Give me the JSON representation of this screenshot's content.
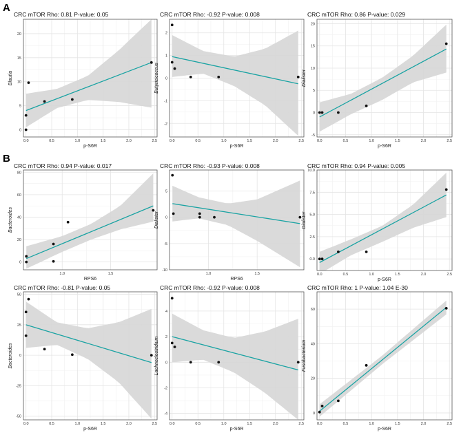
{
  "figure": {
    "panel_labels": [
      "A",
      "B"
    ],
    "colors": {
      "line": "#1aa3a3",
      "band": "#d6d6d6",
      "grid_major": "#e4e4e4",
      "grid_minor": "#f1f1f1",
      "point": "#111111",
      "frame": "#555555"
    }
  },
  "chart_data": [
    {
      "type": "scatter",
      "panel": "A",
      "title": "CRC    mTOR  Rho: 0.81  P-value: 0.05",
      "xlabel": "p-S6R",
      "ylabel": "Blautia",
      "xlim": [
        -0.05,
        2.55
      ],
      "ylim": [
        -1.5,
        23
      ],
      "xticks": [
        0.0,
        0.5,
        1.0,
        1.5,
        2.0,
        2.5
      ],
      "xtick_labels": [
        "0.0",
        "0.5",
        "1.0",
        "1.5",
        "2.0",
        "2.5"
      ],
      "yticks": [
        0,
        5,
        10,
        15,
        20
      ],
      "ytick_labels": [
        "0",
        "5",
        "10",
        "15",
        "20"
      ],
      "x": [
        0.0,
        0.0,
        0.05,
        0.36,
        0.9,
        2.44
      ],
      "y": [
        0.0,
        3.0,
        9.8,
        5.9,
        6.3,
        14.0
      ],
      "fit": [
        [
          0.0,
          4.0
        ],
        [
          2.44,
          14.0
        ]
      ],
      "band_lower": [
        [
          0.0,
          0.5
        ],
        [
          0.6,
          4.5
        ],
        [
          1.2,
          6.2
        ],
        [
          1.8,
          5.8
        ],
        [
          2.44,
          4.6
        ]
      ],
      "band_upper": [
        [
          0.0,
          7.5
        ],
        [
          0.6,
          8.5
        ],
        [
          1.2,
          11.2
        ],
        [
          1.8,
          16.5
        ],
        [
          2.44,
          23.0
        ]
      ]
    },
    {
      "type": "scatter",
      "panel": "A",
      "title": "CRC    mTOR  Rho: -0.92  P-value: 0.008",
      "xlabel": "p-S6R",
      "ylabel": "Butyricicoccus",
      "xlim": [
        -0.05,
        2.55
      ],
      "ylim": [
        -2.6,
        2.6
      ],
      "xticks": [
        0.0,
        0.5,
        1.0,
        1.5,
        2.0,
        2.5
      ],
      "xtick_labels": [
        "0.0",
        "0.5",
        "1.0",
        "1.5",
        "2.0",
        "2.5"
      ],
      "yticks": [
        -2,
        -1,
        0,
        1,
        2
      ],
      "ytick_labels": [
        "-2",
        "-1",
        "0",
        "1",
        "2"
      ],
      "x": [
        0.0,
        0.0,
        0.05,
        0.36,
        0.9,
        2.44
      ],
      "y": [
        2.35,
        0.7,
        0.42,
        0.05,
        0.05,
        0.05
      ],
      "fit": [
        [
          0.0,
          0.95
        ],
        [
          2.44,
          -0.25
        ]
      ],
      "band_lower": [
        [
          0.0,
          0.05
        ],
        [
          0.6,
          0.2
        ],
        [
          1.2,
          -0.35
        ],
        [
          1.8,
          -1.2
        ],
        [
          2.44,
          -2.55
        ]
      ],
      "band_upper": [
        [
          0.0,
          1.9
        ],
        [
          0.6,
          1.2
        ],
        [
          1.2,
          0.95
        ],
        [
          1.8,
          1.3
        ],
        [
          2.44,
          2.1
        ]
      ]
    },
    {
      "type": "scatter",
      "panel": "A",
      "title": "CRC    mTOR  Rho: 0.86  P-value: 0.029",
      "xlabel": "p-S6R",
      "ylabel": "Dialister",
      "xlim": [
        -0.05,
        2.55
      ],
      "ylim": [
        -5.5,
        21
      ],
      "xticks": [
        0.0,
        0.5,
        1.0,
        1.5,
        2.0,
        2.5
      ],
      "xtick_labels": [
        "0.0",
        "0.5",
        "1.0",
        "1.5",
        "2.0",
        "2.5"
      ],
      "yticks": [
        -5,
        0,
        5,
        10,
        15,
        20
      ],
      "ytick_labels": [
        "-5",
        "0",
        "5",
        "10",
        "15",
        "20"
      ],
      "x": [
        0.0,
        0.05,
        0.36,
        0.9,
        2.44
      ],
      "y": [
        0.0,
        0.0,
        0.0,
        1.5,
        15.5
      ],
      "fit": [
        [
          0.0,
          -1.0
        ],
        [
          2.44,
          14.3
        ]
      ],
      "band_lower": [
        [
          0.0,
          -4.3
        ],
        [
          0.6,
          -0.4
        ],
        [
          1.2,
          2.8
        ],
        [
          1.8,
          6.8
        ],
        [
          2.44,
          9.0
        ]
      ],
      "band_upper": [
        [
          0.0,
          2.3
        ],
        [
          0.6,
          4.2
        ],
        [
          1.2,
          7.8
        ],
        [
          1.8,
          12.8
        ],
        [
          2.44,
          19.8
        ]
      ]
    },
    {
      "type": "scatter",
      "panel": "B",
      "title": "CRC    mTOR  Rho: 0.94  P-value: 0.017",
      "xlabel": "RPS6",
      "ylabel": "Bacteroides",
      "xlim": [
        0.6,
        1.98
      ],
      "ylim": [
        -7,
        82
      ],
      "xticks": [
        1.0,
        1.5
      ],
      "xtick_labels": [
        "1.0",
        "1.5"
      ],
      "yticks": [
        0,
        20,
        40,
        60,
        80
      ],
      "ytick_labels": [
        "0",
        "20",
        "40",
        "60",
        "80"
      ],
      "x": [
        0.63,
        0.63,
        0.91,
        0.91,
        1.06,
        1.94
      ],
      "y": [
        0.0,
        5.0,
        0.5,
        16.0,
        35.5,
        46.0
      ],
      "fit": [
        [
          0.63,
          3.0
        ],
        [
          1.94,
          50.0
        ]
      ],
      "band_lower": [
        [
          0.63,
          -6.0
        ],
        [
          1.0,
          9.0
        ],
        [
          1.3,
          20.0
        ],
        [
          1.6,
          29.0
        ],
        [
          1.94,
          36.0
        ]
      ],
      "band_upper": [
        [
          0.63,
          14.0
        ],
        [
          1.0,
          23.0
        ],
        [
          1.3,
          34.0
        ],
        [
          1.6,
          50.0
        ],
        [
          1.94,
          79.0
        ]
      ]
    },
    {
      "type": "scatter",
      "panel": "B",
      "title": "CRC    mTOR  Rho: -0.93  P-value: 0.008",
      "xlabel": "RPS6",
      "ylabel": "Dialister",
      "xlim": [
        0.6,
        1.98
      ],
      "ylim": [
        -10,
        9
      ],
      "xticks": [
        1.0,
        1.5
      ],
      "xtick_labels": [
        "1.0",
        "1.5"
      ],
      "yticks": [
        -10,
        -5,
        0,
        5
      ],
      "ytick_labels": [
        "-10",
        "-5",
        "0",
        "5"
      ],
      "x": [
        0.63,
        0.64,
        0.91,
        0.91,
        1.06,
        1.94
      ],
      "y": [
        8.0,
        0.7,
        0.7,
        0.0,
        0.0,
        0.0
      ],
      "fit": [
        [
          0.63,
          2.6
        ],
        [
          1.94,
          -1.2
        ]
      ],
      "band_lower": [
        [
          0.63,
          -0.8
        ],
        [
          0.9,
          -0.2
        ],
        [
          1.2,
          -1.5
        ],
        [
          1.5,
          -4.5
        ],
        [
          1.94,
          -9.5
        ]
      ],
      "band_upper": [
        [
          0.63,
          6.0
        ],
        [
          0.9,
          3.8
        ],
        [
          1.2,
          2.6
        ],
        [
          1.5,
          3.4
        ],
        [
          1.94,
          7.0
        ]
      ]
    },
    {
      "type": "scatter",
      "panel": "B",
      "title": "CRC    mTOR  Rho: 0.94  P-value: 0.005",
      "xlabel": "p-S6R",
      "ylabel": "Dialister",
      "xlim": [
        -0.05,
        2.55
      ],
      "ylim": [
        -1.3,
        10
      ],
      "xticks": [
        0.0,
        0.5,
        1.0,
        1.5,
        2.0,
        2.5
      ],
      "xtick_labels": [
        "0.0",
        "0.5",
        "1.0",
        "1.5",
        "2.0",
        "2.5"
      ],
      "yticks": [
        0.0,
        2.5,
        5.0,
        7.5,
        10.0
      ],
      "ytick_labels": [
        "0.0",
        "2.5",
        "5.0",
        "7.5",
        "10.0"
      ],
      "x": [
        0.0,
        0.05,
        0.36,
        0.9,
        2.44
      ],
      "y": [
        0.0,
        0.0,
        0.8,
        0.8,
        7.8
      ],
      "fit": [
        [
          0.0,
          -0.4
        ],
        [
          2.44,
          7.2
        ]
      ],
      "band_lower": [
        [
          0.0,
          -1.7
        ],
        [
          0.6,
          0.4
        ],
        [
          1.2,
          1.9
        ],
        [
          1.8,
          3.5
        ],
        [
          2.44,
          4.7
        ]
      ],
      "band_upper": [
        [
          0.0,
          0.8
        ],
        [
          0.6,
          2.2
        ],
        [
          1.2,
          3.7
        ],
        [
          1.8,
          6.1
        ],
        [
          2.44,
          9.7
        ]
      ]
    },
    {
      "type": "scatter",
      "panel": "B",
      "title": "CRC    mTOR  Rho: -0.81  P-value: 0.05",
      "xlabel": "p-S6R",
      "ylabel": "Bacteroides",
      "xlim": [
        -0.05,
        2.55
      ],
      "ylim": [
        -53,
        52
      ],
      "xticks": [
        0.0,
        0.5,
        1.0,
        1.5,
        2.0,
        2.5
      ],
      "xtick_labels": [
        "0.0",
        "0.5",
        "1.0",
        "1.5",
        "2.0",
        "2.5"
      ],
      "yticks": [
        -50,
        -25,
        0,
        25,
        50
      ],
      "ytick_labels": [
        "-50",
        "-25",
        "0",
        "25",
        "50"
      ],
      "x": [
        0.0,
        0.0,
        0.05,
        0.36,
        0.9,
        2.44
      ],
      "y": [
        35.5,
        16.0,
        46.0,
        5.0,
        0.5,
        0.0
      ],
      "fit": [
        [
          0.0,
          25.0
        ],
        [
          2.44,
          -6.0
        ]
      ],
      "band_lower": [
        [
          0.0,
          6.0
        ],
        [
          0.6,
          8.5
        ],
        [
          1.2,
          -3.0
        ],
        [
          1.8,
          -22.0
        ],
        [
          2.44,
          -52.0
        ]
      ],
      "band_upper": [
        [
          0.0,
          44.0
        ],
        [
          0.6,
          27.0
        ],
        [
          1.2,
          22.0
        ],
        [
          1.8,
          27.0
        ],
        [
          2.44,
          38.0
        ]
      ]
    },
    {
      "type": "scatter",
      "panel": "B",
      "title": "CRC    mTOR  Rho: -0.92  P-value: 0.008",
      "xlabel": "p-S6R",
      "ylabel": "Lachnoclostridium",
      "xlim": [
        -0.05,
        2.55
      ],
      "ylim": [
        -4.5,
        5.5
      ],
      "xticks": [
        0.0,
        0.5,
        1.0,
        1.5,
        2.0,
        2.5
      ],
      "xtick_labels": [
        "0.0",
        "0.5",
        "1.0",
        "1.5",
        "2.0",
        "2.5"
      ],
      "yticks": [
        -4,
        -2,
        0,
        2,
        4
      ],
      "ytick_labels": [
        "-4",
        "-2",
        "0",
        "2",
        "4"
      ],
      "x": [
        0.0,
        0.0,
        0.05,
        0.36,
        0.9,
        2.44
      ],
      "y": [
        5.0,
        1.5,
        1.2,
        0.0,
        0.0,
        0.0
      ],
      "fit": [
        [
          0.0,
          2.0
        ],
        [
          2.44,
          -0.6
        ]
      ],
      "band_lower": [
        [
          0.0,
          0.0
        ],
        [
          0.6,
          0.2
        ],
        [
          1.2,
          -0.8
        ],
        [
          1.8,
          -2.4
        ],
        [
          2.44,
          -4.5
        ]
      ],
      "band_upper": [
        [
          0.0,
          3.8
        ],
        [
          0.6,
          2.5
        ],
        [
          1.2,
          1.9
        ],
        [
          1.8,
          2.4
        ],
        [
          2.44,
          3.4
        ]
      ]
    },
    {
      "type": "scatter",
      "panel": "B",
      "title": "CRC    mTOR  Rho: 1  P-value: 1.04 E-30",
      "xlabel": "p-S6R",
      "ylabel": "Fusobacterium",
      "xlim": [
        -0.05,
        2.55
      ],
      "ylim": [
        -4,
        70
      ],
      "xticks": [
        0.0,
        0.5,
        1.0,
        1.5,
        2.0,
        2.5
      ],
      "xtick_labels": [
        "0.0",
        "0.5",
        "1.0",
        "1.5",
        "2.0",
        "2.5"
      ],
      "yticks": [
        0,
        20,
        40,
        60
      ],
      "ytick_labels": [
        "0",
        "20",
        "40",
        "60"
      ],
      "x": [
        0.0,
        0.05,
        0.36,
        0.9,
        2.44
      ],
      "y": [
        0.5,
        4.0,
        7.0,
        27.5,
        60.5
      ],
      "fit": [
        [
          0.0,
          1.0
        ],
        [
          2.44,
          61.0
        ]
      ],
      "band_lower": [
        [
          0.0,
          -2.2
        ],
        [
          1.2,
          28.0
        ],
        [
          2.44,
          57.0
        ]
      ],
      "band_upper": [
        [
          0.0,
          5.0
        ],
        [
          1.2,
          33.0
        ],
        [
          2.44,
          65.0
        ]
      ]
    }
  ]
}
